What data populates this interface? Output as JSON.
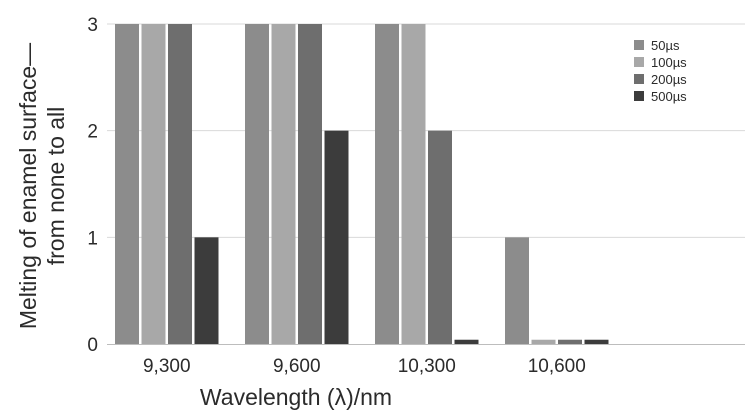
{
  "chart_data": {
    "type": "bar",
    "categories": [
      "9,300",
      "9,600",
      "10,300",
      "10,600"
    ],
    "series": [
      {
        "name": "50µs",
        "color": "#8c8c8c",
        "values": [
          3,
          3,
          3,
          1
        ]
      },
      {
        "name": "100µs",
        "color": "#a8a8a8",
        "values": [
          3,
          3,
          3,
          0.04
        ]
      },
      {
        "name": "200µs",
        "color": "#6e6e6e",
        "values": [
          3,
          3,
          2,
          0.04
        ]
      },
      {
        "name": "500µs",
        "color": "#3c3c3c",
        "values": [
          1,
          2,
          0.04,
          0.04
        ]
      }
    ],
    "xlabel": "Wavelength (λ)/nm",
    "ylabel_line1": "Melting of enamel surface—",
    "ylabel_line2": "from none to all",
    "ylim": [
      0,
      3
    ],
    "yticks": [
      "0",
      "1",
      "2",
      "3"
    ],
    "grid": true,
    "legend_position": "top-right"
  }
}
